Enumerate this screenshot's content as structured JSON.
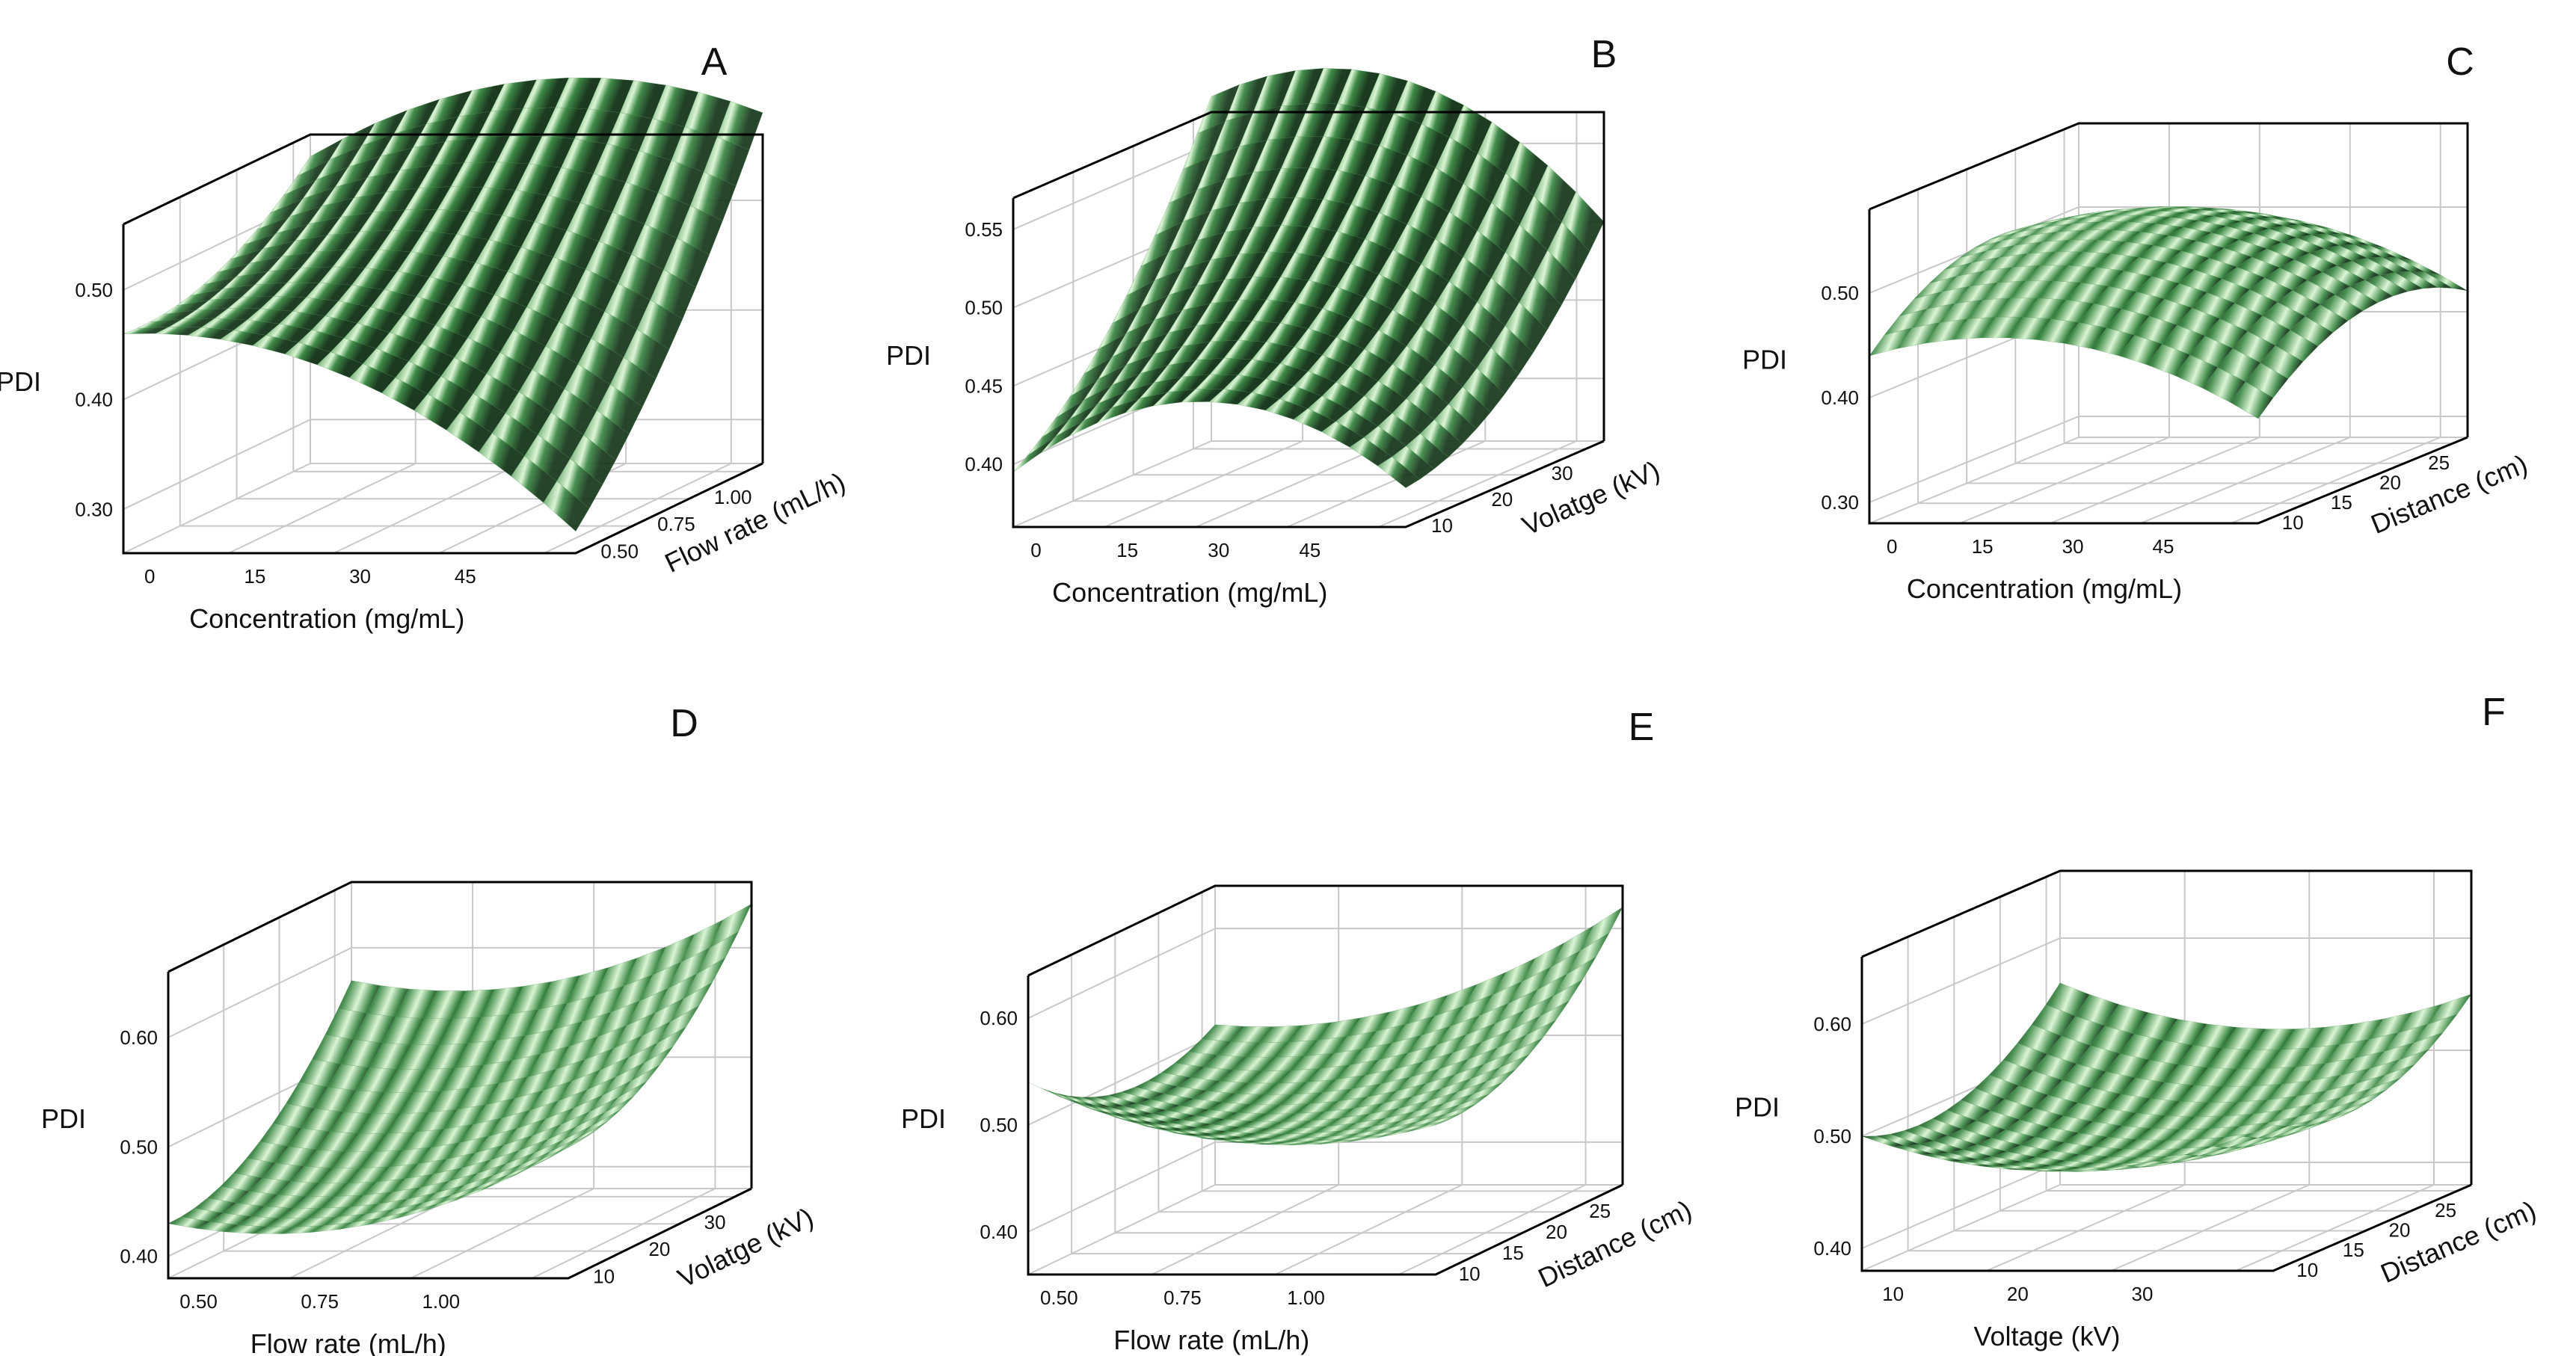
{
  "figure_title": "",
  "colors": {
    "surface_dark": "#1b3a1f",
    "surface_mid": "#3f8a48",
    "surface_light": "#d9f5d2",
    "box_line": "#000000",
    "grid_line": "#c8c8c8"
  },
  "chart_data": [
    {
      "type": "surface",
      "panel": "A",
      "zlabel": "PDI",
      "xlabel": "Concentration (mg/mL)",
      "ylabel": "Flow rate (mL/h)",
      "x_ticks": [
        "0",
        "15",
        "30",
        "45"
      ],
      "y_ticks": [
        "0.50",
        "0.75",
        "1.00"
      ],
      "z_ticks": [
        "0.30",
        "0.40",
        "0.50"
      ],
      "xlim": [
        0,
        50
      ],
      "ylim": [
        0.5,
        1.0
      ],
      "zlim": [
        0.26,
        0.56
      ],
      "shape": "saddle",
      "corners": [
        0.46,
        0.28,
        0.58,
        0.54
      ]
    },
    {
      "type": "surface",
      "panel": "B",
      "zlabel": "PDI",
      "xlabel": "Concentration (mg/mL)",
      "ylabel": "Volatge (kV)",
      "x_ticks": [
        "0",
        "15",
        "30",
        "45"
      ],
      "y_ticks": [
        "10",
        "20",
        "30"
      ],
      "z_ticks": [
        "0.40",
        "0.45",
        "0.50",
        "0.55"
      ],
      "xlim": [
        0,
        50
      ],
      "ylim": [
        10,
        32
      ],
      "zlim": [
        0.36,
        0.57
      ],
      "shape": "saddle",
      "corners": [
        0.395,
        0.385,
        0.5,
        0.58
      ]
    },
    {
      "type": "surface",
      "panel": "C",
      "zlabel": "PDI",
      "xlabel": "Concentration (mg/mL)",
      "ylabel": "Distance (cm)",
      "x_ticks": [
        "0",
        "15",
        "30",
        "45"
      ],
      "y_ticks": [
        "10",
        "15",
        "20",
        "25"
      ],
      "z_ticks": [
        "0.30",
        "0.40",
        "0.50"
      ],
      "xlim": [
        0,
        50
      ],
      "ylim": [
        10,
        26
      ],
      "zlim": [
        0.28,
        0.58
      ],
      "shape": "dome",
      "corners": [
        0.44,
        0.38,
        0.42,
        0.48
      ]
    },
    {
      "type": "surface",
      "panel": "D",
      "zlabel": "PDI",
      "xlabel": "Flow rate (mL/h)",
      "ylabel": "Volatge (kV)",
      "x_ticks": [
        "0.50",
        "0.75",
        "1.00"
      ],
      "y_ticks": [
        "10",
        "20",
        "30"
      ],
      "z_ticks": [
        "0.40",
        "0.50",
        "0.60"
      ],
      "xlim": [
        0.5,
        1.0
      ],
      "ylim": [
        10,
        32
      ],
      "zlim": [
        0.38,
        0.66
      ],
      "shape": "bowl",
      "corners": [
        0.43,
        0.5,
        0.64,
        0.57
      ]
    },
    {
      "type": "surface",
      "panel": "E",
      "zlabel": "PDI",
      "xlabel": "Flow rate (mL/h)",
      "ylabel": "Distance (cm)",
      "x_ticks": [
        "0.50",
        "0.75",
        "1.00"
      ],
      "y_ticks": [
        "10",
        "15",
        "20",
        "25"
      ],
      "z_ticks": [
        "0.40",
        "0.50",
        "0.60"
      ],
      "xlim": [
        0.5,
        1.0
      ],
      "ylim": [
        10,
        26
      ],
      "zlim": [
        0.36,
        0.64
      ],
      "shape": "bowl",
      "corners": [
        0.54,
        0.5,
        0.62,
        0.51
      ]
    },
    {
      "type": "surface",
      "panel": "F",
      "zlabel": "PDI",
      "xlabel": "Voltage (kV)",
      "ylabel": "Distance (cm)",
      "x_ticks": [
        "10",
        "20",
        "30"
      ],
      "y_ticks": [
        "10",
        "15",
        "20",
        "25"
      ],
      "z_ticks": [
        "0.40",
        "0.50",
        "0.60"
      ],
      "xlim": [
        10,
        32
      ],
      "ylim": [
        10,
        26
      ],
      "zlim": [
        0.38,
        0.66
      ],
      "shape": "bowl",
      "corners": [
        0.5,
        0.51,
        0.55,
        0.56
      ]
    }
  ]
}
